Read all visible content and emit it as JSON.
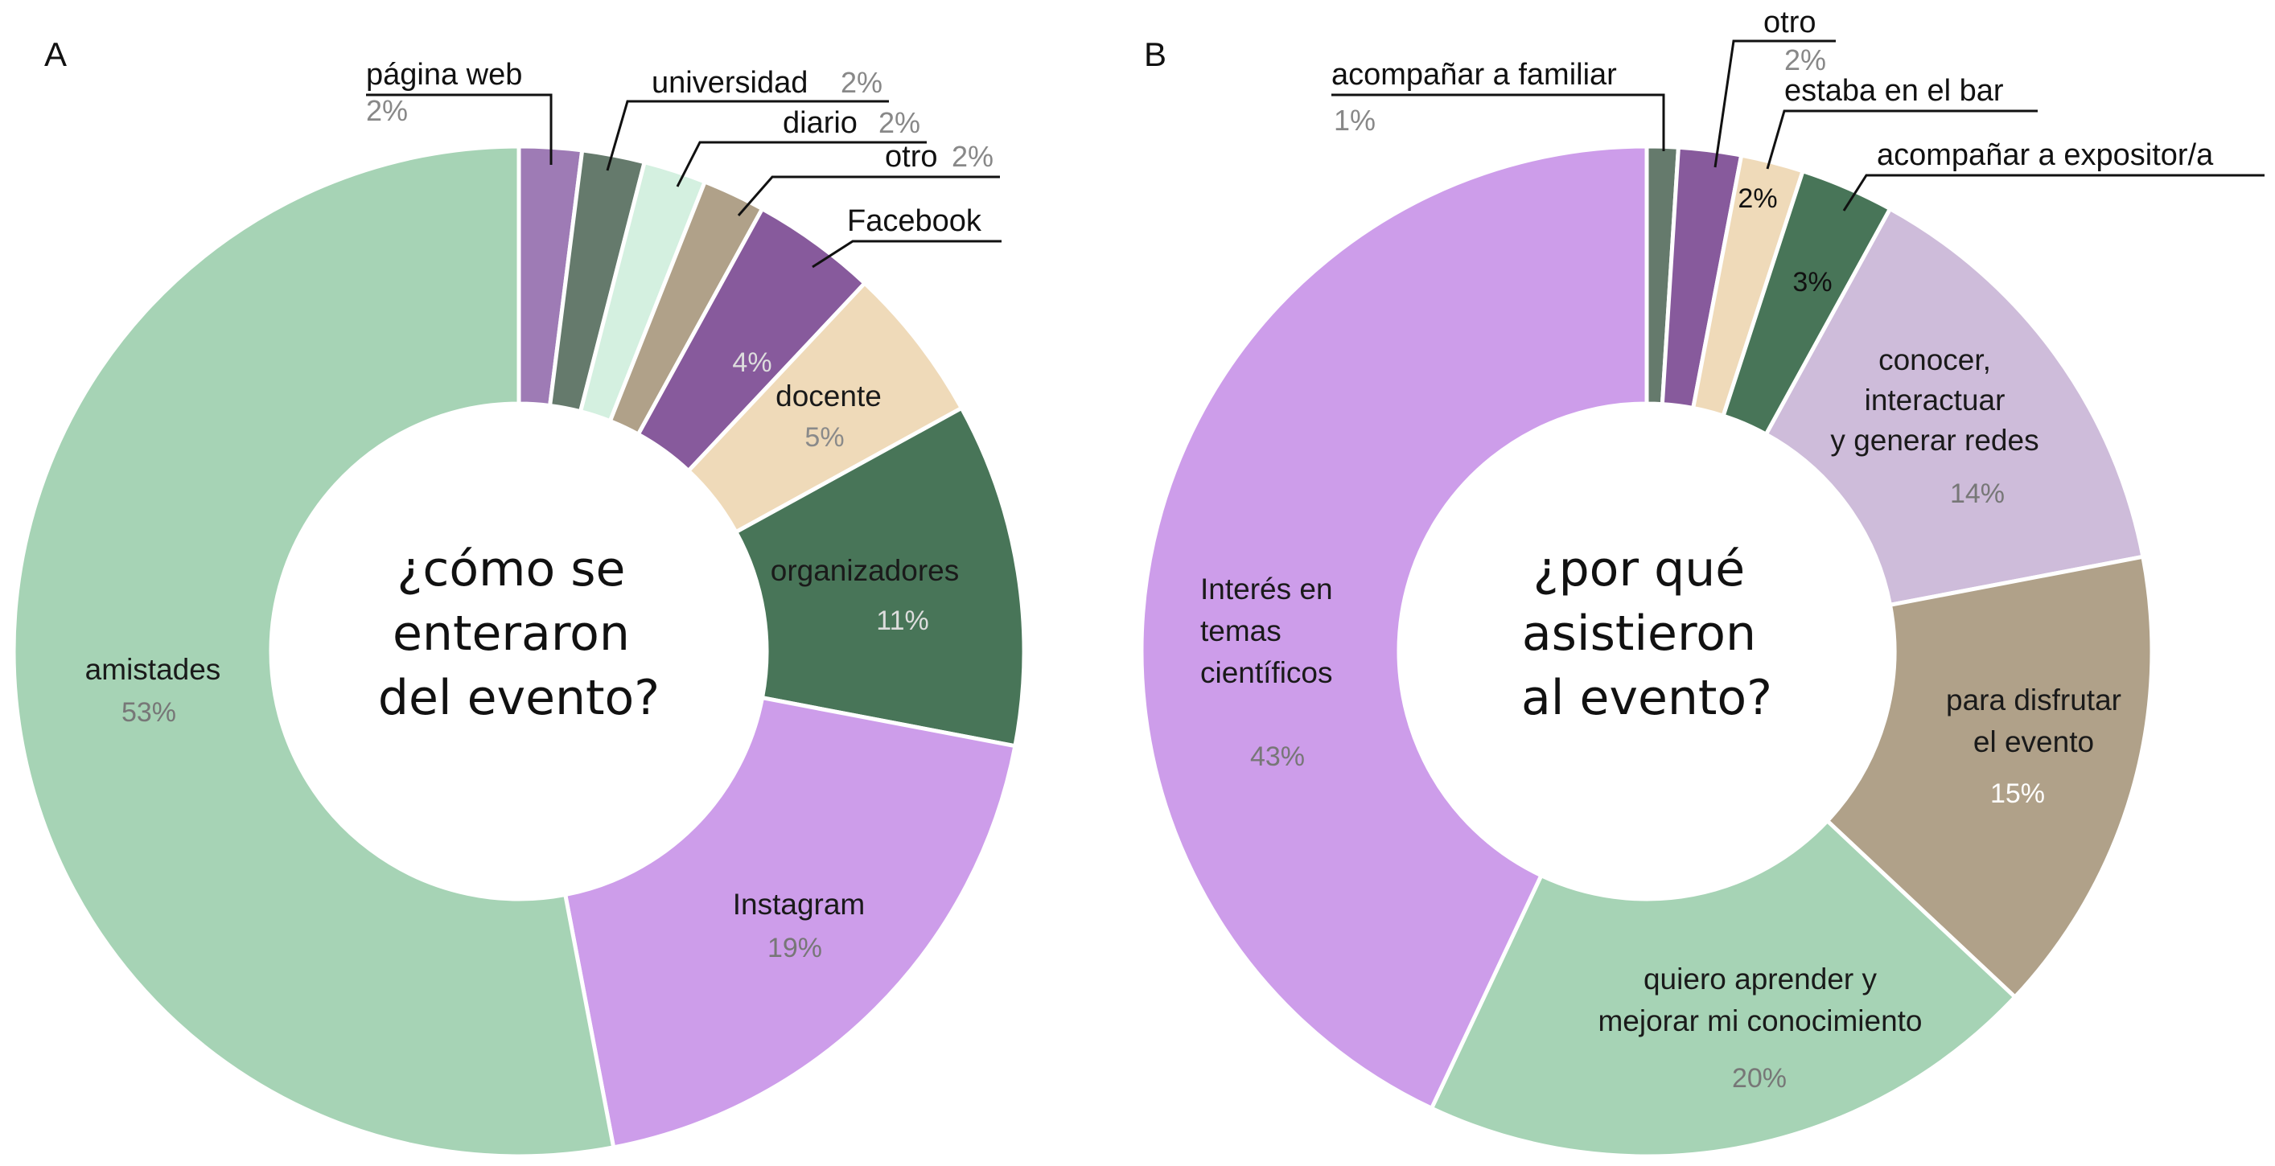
{
  "chart_data": [
    {
      "type": "pie",
      "panel": "A",
      "title": "¿cómo se enteraron del evento?",
      "title_lines": [
        "¿cómo se",
        "enteraron",
        "del evento?"
      ],
      "slices": [
        {
          "label": "página web",
          "value": 2,
          "display": "2%",
          "color": "#9e7bb5"
        },
        {
          "label": "universidad",
          "value": 2,
          "display": "2%",
          "color": "#657a6c"
        },
        {
          "label": "diario",
          "value": 2,
          "display": "2%",
          "color": "#d4f0e0"
        },
        {
          "label": "otro",
          "value": 2,
          "display": "2%",
          "color": "#b0a189"
        },
        {
          "label": "Facebook",
          "value": 4,
          "display": "4%",
          "color": "#875a9c"
        },
        {
          "label": "docente",
          "value": 5,
          "display": "5%",
          "color": "#efdab9"
        },
        {
          "label": "organizadores",
          "value": 11,
          "display": "11%",
          "color": "#487558"
        },
        {
          "label": "Instagram",
          "value": 19,
          "display": "19%",
          "color": "#cd9dea"
        },
        {
          "label": "amistades",
          "value": 53,
          "display": "53%",
          "color": "#a6d3b5"
        }
      ]
    },
    {
      "type": "pie",
      "panel": "B",
      "title": "¿por qué asistieron al evento?",
      "title_lines": [
        "¿por qué",
        "asistieron",
        "al evento?"
      ],
      "slices": [
        {
          "label": "acompañar a familiar",
          "value": 1,
          "display": "1%",
          "color": "#657a6c"
        },
        {
          "label": "otro",
          "value": 2,
          "display": "2%",
          "color": "#875a9c"
        },
        {
          "label": "estaba en el bar",
          "value": 2,
          "display": "2%",
          "color": "#efdab9"
        },
        {
          "label": "acompañar a expositor/a",
          "value": 3,
          "display": "3%",
          "color": "#487558"
        },
        {
          "label": "conocer, interactuar y generar redes",
          "label_lines": [
            "conocer,",
            "interactuar",
            "y generar redes"
          ],
          "value": 14,
          "display": "14%",
          "color": "#cebcda"
        },
        {
          "label": "para disfrutar el evento",
          "label_lines": [
            "para disfrutar",
            "el evento"
          ],
          "value": 15,
          "display": "15%",
          "color": "#b0a189"
        },
        {
          "label": "quiero aprender y mejorar mi conocimiento",
          "label_lines": [
            "quiero aprender y",
            "mejorar mi conocimiento"
          ],
          "value": 20,
          "display": "20%",
          "color": "#a6d3b5"
        },
        {
          "label": "Interés en temas científicos",
          "label_lines": [
            "Interés en",
            "temas",
            "científicos"
          ],
          "value": 43,
          "display": "43%",
          "color": "#cd9dea"
        }
      ]
    }
  ]
}
